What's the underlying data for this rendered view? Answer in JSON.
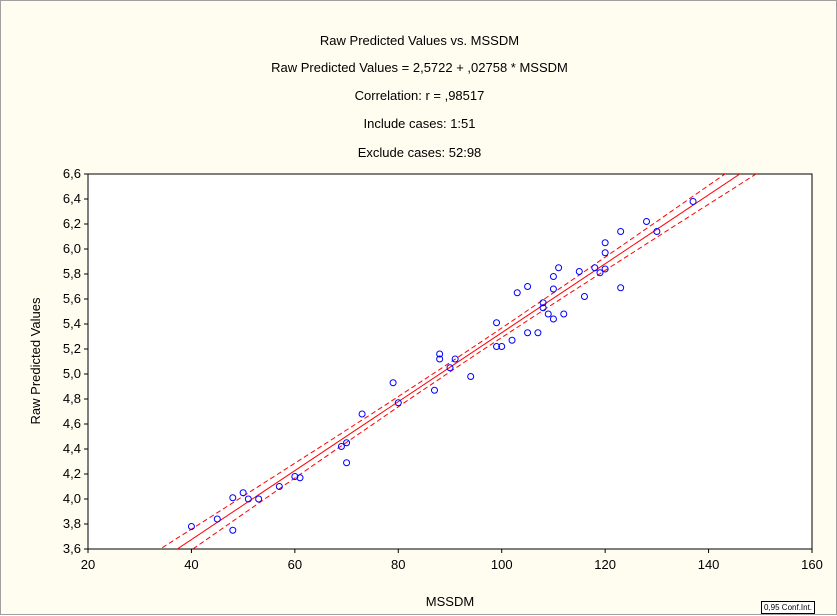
{
  "chart_data": {
    "type": "scatter",
    "title": "Raw Predicted Values  vs. MSSDM",
    "equation": "Raw Predicted Values  = 2,5722 + ,02758 * MSSDM",
    "correlation": "Correlation: r = ,98517",
    "include": "Include cases: 1:51",
    "exclude": "Exclude cases: 52:98",
    "xlabel": "MSSDM",
    "ylabel": "Raw Predicted Values",
    "xlim": [
      20,
      160
    ],
    "ylim": [
      3.6,
      6.6
    ],
    "xticks": [
      20,
      40,
      60,
      80,
      100,
      120,
      140,
      160
    ],
    "xtick_labels": [
      "20",
      "40",
      "60",
      "80",
      "100",
      "120",
      "140",
      "160"
    ],
    "yticks": [
      3.6,
      3.8,
      4.0,
      4.2,
      4.4,
      4.6,
      4.8,
      5.0,
      5.2,
      5.4,
      5.6,
      5.8,
      6.0,
      6.2,
      6.4,
      6.6
    ],
    "ytick_labels": [
      "3,6",
      "3,8",
      "4,0",
      "4,2",
      "4,4",
      "4,6",
      "4,8",
      "5,0",
      "5,2",
      "5,4",
      "5,6",
      "5,8",
      "6,0",
      "6,2",
      "6,4",
      "6,6"
    ],
    "grid": false,
    "legend": "0,95 Conf.Int.",
    "regression": {
      "intercept": 2.5722,
      "slope": 0.02758
    },
    "points": [
      {
        "x": 40,
        "y": 3.78
      },
      {
        "x": 45,
        "y": 3.84
      },
      {
        "x": 48,
        "y": 4.01
      },
      {
        "x": 48,
        "y": 3.75
      },
      {
        "x": 50,
        "y": 4.05
      },
      {
        "x": 51,
        "y": 4.0
      },
      {
        "x": 53,
        "y": 4.0
      },
      {
        "x": 57,
        "y": 4.1
      },
      {
        "x": 60,
        "y": 4.18
      },
      {
        "x": 61,
        "y": 4.17
      },
      {
        "x": 69,
        "y": 4.42
      },
      {
        "x": 70,
        "y": 4.45
      },
      {
        "x": 70,
        "y": 4.29
      },
      {
        "x": 73,
        "y": 4.68
      },
      {
        "x": 79,
        "y": 4.93
      },
      {
        "x": 80,
        "y": 4.77
      },
      {
        "x": 87,
        "y": 4.87
      },
      {
        "x": 88,
        "y": 5.16
      },
      {
        "x": 88,
        "y": 5.12
      },
      {
        "x": 90,
        "y": 5.05
      },
      {
        "x": 91,
        "y": 5.12
      },
      {
        "x": 94,
        "y": 4.98
      },
      {
        "x": 99,
        "y": 5.41
      },
      {
        "x": 99,
        "y": 5.22
      },
      {
        "x": 100,
        "y": 5.22
      },
      {
        "x": 102,
        "y": 5.27
      },
      {
        "x": 103,
        "y": 5.65
      },
      {
        "x": 105,
        "y": 5.7
      },
      {
        "x": 105,
        "y": 5.33
      },
      {
        "x": 107,
        "y": 5.33
      },
      {
        "x": 108,
        "y": 5.57
      },
      {
        "x": 108,
        "y": 5.53
      },
      {
        "x": 109,
        "y": 5.48
      },
      {
        "x": 110,
        "y": 5.44
      },
      {
        "x": 110,
        "y": 5.68
      },
      {
        "x": 110,
        "y": 5.78
      },
      {
        "x": 111,
        "y": 5.85
      },
      {
        "x": 112,
        "y": 5.48
      },
      {
        "x": 115,
        "y": 5.82
      },
      {
        "x": 116,
        "y": 5.62
      },
      {
        "x": 118,
        "y": 5.85
      },
      {
        "x": 119,
        "y": 5.81
      },
      {
        "x": 120,
        "y": 5.84
      },
      {
        "x": 120,
        "y": 5.97
      },
      {
        "x": 120,
        "y": 6.05
      },
      {
        "x": 123,
        "y": 6.14
      },
      {
        "x": 123,
        "y": 5.69
      },
      {
        "x": 128,
        "y": 6.22
      },
      {
        "x": 130,
        "y": 6.14
      },
      {
        "x": 137,
        "y": 6.38
      }
    ]
  }
}
